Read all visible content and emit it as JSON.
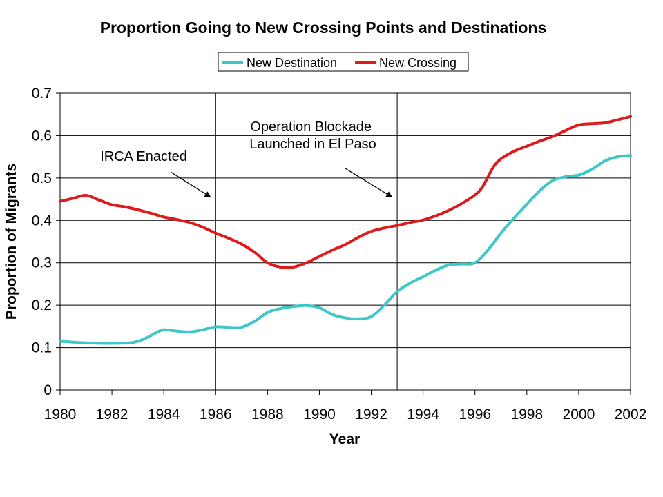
{
  "chart_data": {
    "type": "line",
    "title": "Proportion Going to New Crossing Points and Destinations",
    "xlabel": "Year",
    "ylabel": "Proportion of Migrants",
    "xlim": [
      1980,
      2002
    ],
    "ylim": [
      0,
      0.7
    ],
    "x_ticks": [
      "1980",
      "1982",
      "1984",
      "1986",
      "1988",
      "1990",
      "1992",
      "1994",
      "1996",
      "1998",
      "2000",
      "2002"
    ],
    "y_ticks": [
      "0",
      "0.1",
      "0.2",
      "0.3",
      "0.4",
      "0.5",
      "0.6",
      "0.7"
    ],
    "grid": "horizontal",
    "legend_position": "top",
    "series": [
      {
        "name": "New Destination",
        "color": "#3cc8c8",
        "points": [
          [
            1980,
            0.115
          ],
          [
            1981,
            0.111
          ],
          [
            1982,
            0.11
          ],
          [
            1982.8,
            0.112
          ],
          [
            1983.3,
            0.122
          ],
          [
            1983.7,
            0.135
          ],
          [
            1984,
            0.142
          ],
          [
            1984.5,
            0.139
          ],
          [
            1985,
            0.137
          ],
          [
            1985.5,
            0.142
          ],
          [
            1986,
            0.149
          ],
          [
            1986.5,
            0.148
          ],
          [
            1987,
            0.148
          ],
          [
            1987.5,
            0.162
          ],
          [
            1988,
            0.183
          ],
          [
            1988.5,
            0.192
          ],
          [
            1989,
            0.197
          ],
          [
            1989.5,
            0.199
          ],
          [
            1990,
            0.194
          ],
          [
            1990.5,
            0.178
          ],
          [
            1991,
            0.17
          ],
          [
            1991.5,
            0.168
          ],
          [
            1992,
            0.173
          ],
          [
            1992.5,
            0.2
          ],
          [
            1993,
            0.232
          ],
          [
            1993.5,
            0.252
          ],
          [
            1994,
            0.267
          ],
          [
            1994.5,
            0.283
          ],
          [
            1995,
            0.295
          ],
          [
            1995.5,
            0.297
          ],
          [
            1996,
            0.3
          ],
          [
            1996.5,
            0.33
          ],
          [
            1997,
            0.37
          ],
          [
            1997.5,
            0.405
          ],
          [
            1998,
            0.438
          ],
          [
            1998.5,
            0.47
          ],
          [
            1999,
            0.494
          ],
          [
            1999.5,
            0.503
          ],
          [
            2000,
            0.507
          ],
          [
            2000.5,
            0.52
          ],
          [
            2001,
            0.54
          ],
          [
            2001.5,
            0.55
          ],
          [
            2002,
            0.553
          ]
        ]
      },
      {
        "name": "New Crossing",
        "color": "#e01a1a",
        "points": [
          [
            1980,
            0.445
          ],
          [
            1980.5,
            0.452
          ],
          [
            1981,
            0.459
          ],
          [
            1981.5,
            0.448
          ],
          [
            1982,
            0.437
          ],
          [
            1982.5,
            0.432
          ],
          [
            1983,
            0.425
          ],
          [
            1983.5,
            0.417
          ],
          [
            1984,
            0.408
          ],
          [
            1984.5,
            0.402
          ],
          [
            1985,
            0.395
          ],
          [
            1985.5,
            0.384
          ],
          [
            1986,
            0.37
          ],
          [
            1986.5,
            0.358
          ],
          [
            1987,
            0.344
          ],
          [
            1987.5,
            0.325
          ],
          [
            1988,
            0.3
          ],
          [
            1988.5,
            0.29
          ],
          [
            1989,
            0.29
          ],
          [
            1989.5,
            0.3
          ],
          [
            1990,
            0.315
          ],
          [
            1990.5,
            0.33
          ],
          [
            1991,
            0.343
          ],
          [
            1991.5,
            0.36
          ],
          [
            1992,
            0.374
          ],
          [
            1992.5,
            0.382
          ],
          [
            1993,
            0.388
          ],
          [
            1993.5,
            0.395
          ],
          [
            1994,
            0.401
          ],
          [
            1994.5,
            0.411
          ],
          [
            1995,
            0.424
          ],
          [
            1995.5,
            0.44
          ],
          [
            1996,
            0.46
          ],
          [
            1996.3,
            0.48
          ],
          [
            1996.7,
            0.525
          ],
          [
            1997,
            0.545
          ],
          [
            1997.5,
            0.563
          ],
          [
            1998,
            0.575
          ],
          [
            1998.5,
            0.587
          ],
          [
            1999,
            0.598
          ],
          [
            1999.5,
            0.612
          ],
          [
            2000,
            0.625
          ],
          [
            2000.5,
            0.628
          ],
          [
            2001,
            0.63
          ],
          [
            2001.5,
            0.637
          ],
          [
            2002,
            0.645
          ]
        ]
      }
    ],
    "vertical_lines": [
      1986,
      1993
    ],
    "annotations": [
      {
        "lines": [
          "IRCA Enacted"
        ],
        "arrow_to": [
          1985.8,
          0.455
        ]
      },
      {
        "lines": [
          "Operation Blockade",
          "Launched in El Paso"
        ],
        "arrow_to": [
          1992.8,
          0.455
        ]
      }
    ]
  }
}
